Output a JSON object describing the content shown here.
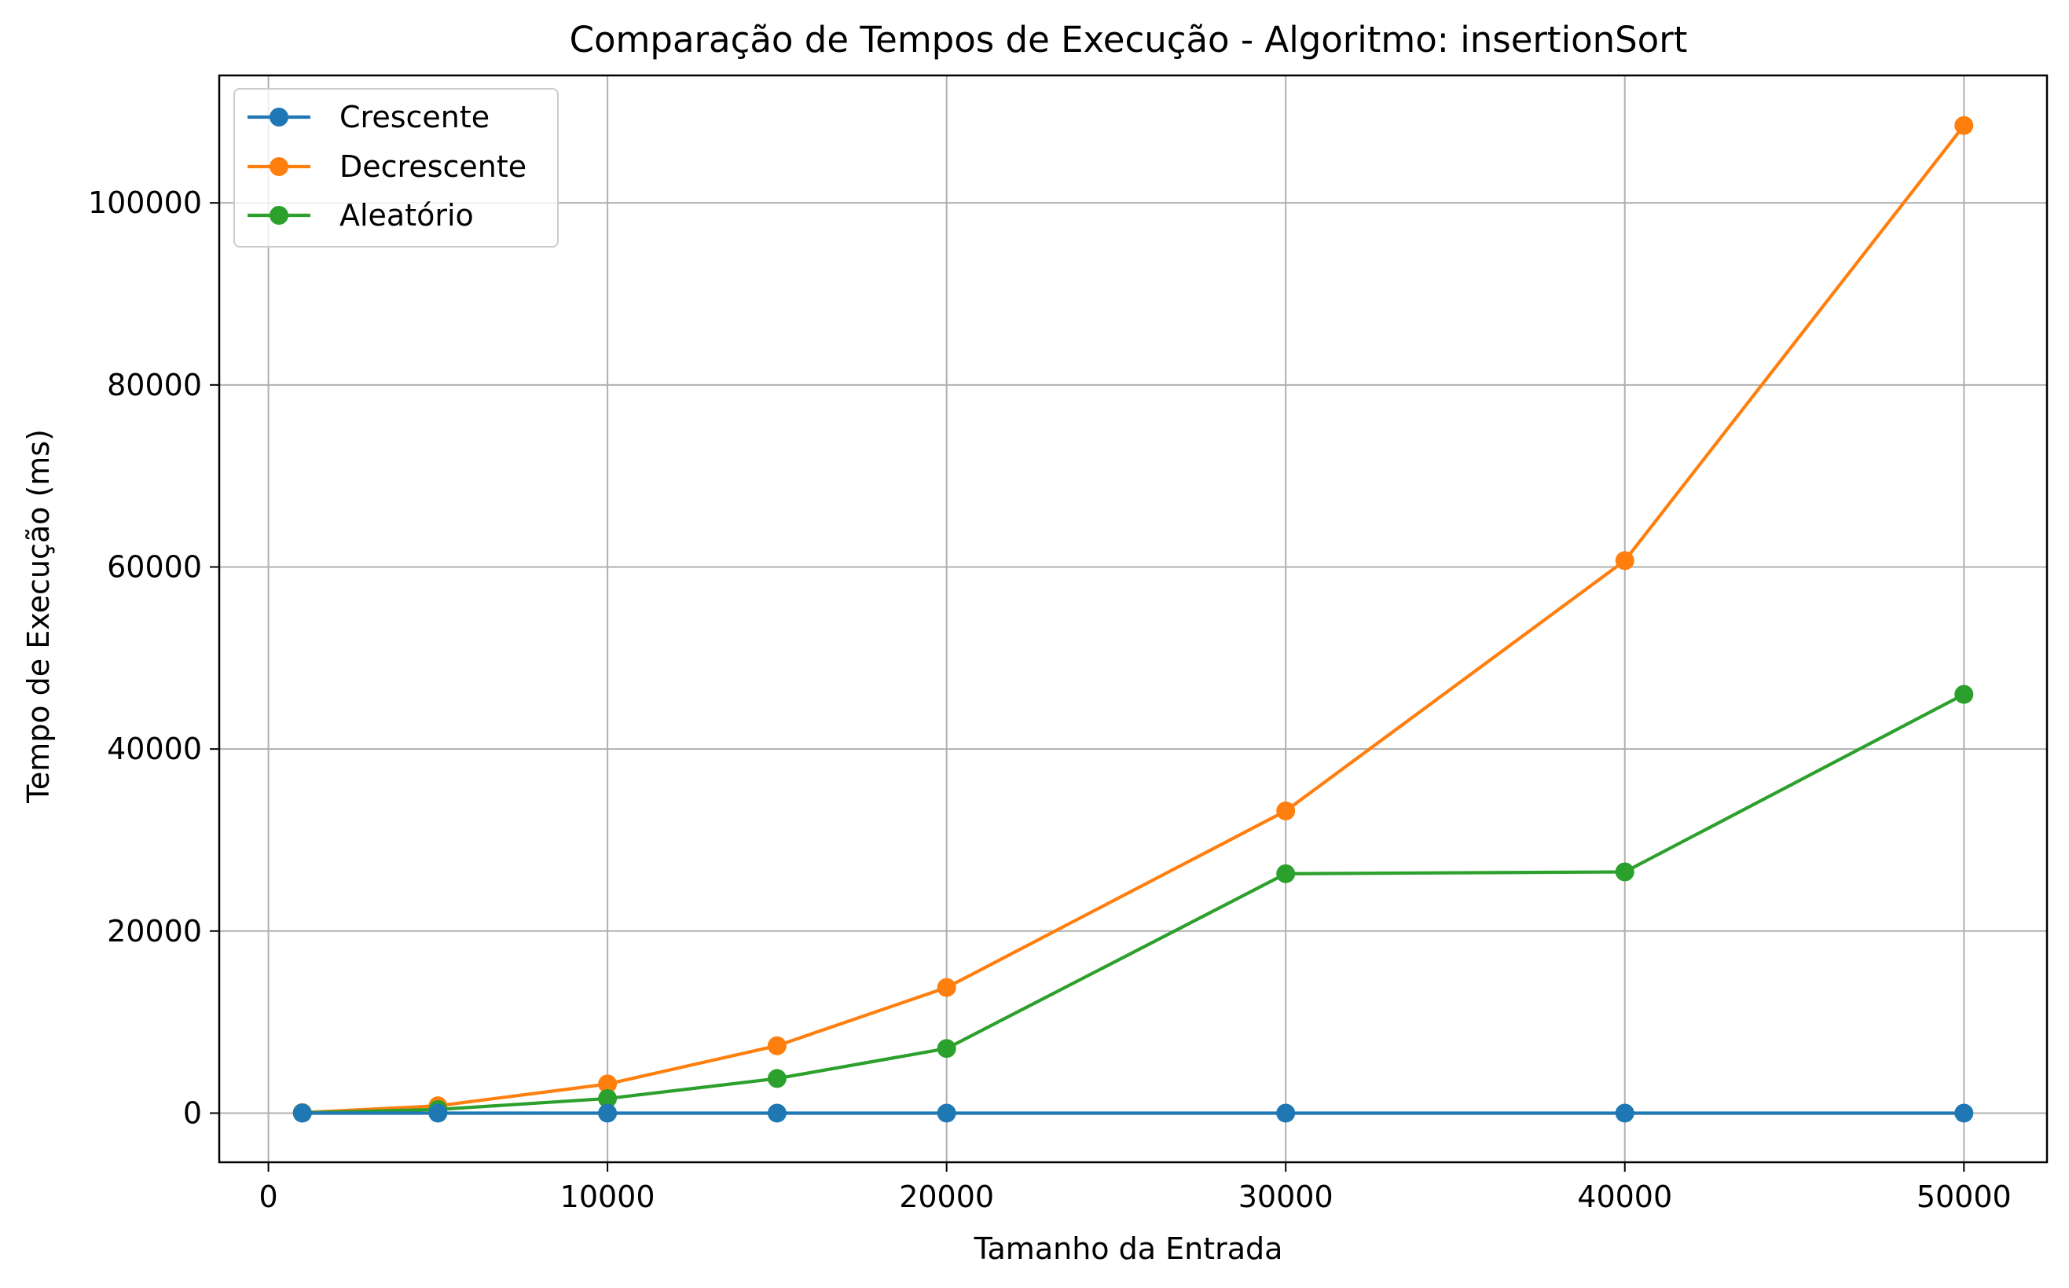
{
  "chart_data": {
    "type": "line",
    "title": "Comparação de Tempos de Execução - Algoritmo: insertionSort",
    "xlabel": "Tamanho da Entrada",
    "ylabel": "Tempo de Execução (ms)",
    "xlim": [
      -1450,
      52450
    ],
    "ylim": [
      -5400,
      114000
    ],
    "xticks": [
      0,
      10000,
      20000,
      30000,
      40000,
      50000
    ],
    "yticks": [
      0,
      20000,
      40000,
      60000,
      80000,
      100000
    ],
    "grid": true,
    "legend_position": "top-left",
    "x": [
      1000,
      5000,
      10000,
      15000,
      20000,
      30000,
      40000,
      50000
    ],
    "series": [
      {
        "name": "Crescente",
        "color": "#1f77b4",
        "values": [
          0,
          0,
          0,
          0,
          0,
          0,
          0,
          0
        ]
      },
      {
        "name": "Decrescente",
        "color": "#ff7f0e",
        "values": [
          50,
          800,
          3200,
          7400,
          13800,
          33200,
          60700,
          108500
        ]
      },
      {
        "name": "Aleatório",
        "color": "#2ca02c",
        "values": [
          30,
          400,
          1600,
          3800,
          7100,
          26300,
          26500,
          46000
        ]
      }
    ]
  }
}
